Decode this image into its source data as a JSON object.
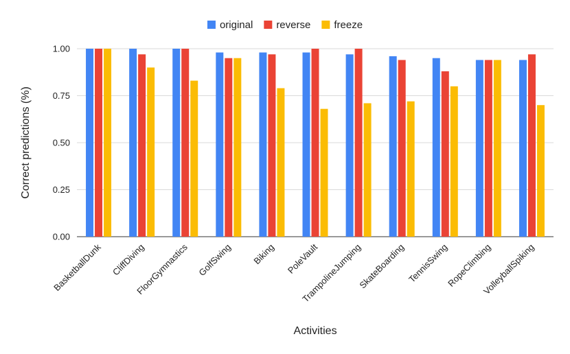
{
  "chart_data": {
    "type": "bar",
    "title": "",
    "xlabel": "Activities",
    "ylabel": "Correct predictions (%)",
    "ylim": [
      0,
      1
    ],
    "yticks": [
      "0.00",
      "0.25",
      "0.50",
      "0.75",
      "1.00"
    ],
    "grid": true,
    "legend_position": "top",
    "categories": [
      "BasketballDunk",
      "CliffDiving",
      "FloorGymnastics",
      "GolfSwing",
      "Biking",
      "PoleVault",
      "TrampolineJumping",
      "SkateBoarding",
      "TennisSwing",
      "RopeClimbing",
      "VolleyballSpiking"
    ],
    "series": [
      {
        "name": "original",
        "color": "#4285f4",
        "values": [
          1.0,
          1.0,
          1.0,
          0.98,
          0.98,
          0.98,
          0.97,
          0.96,
          0.95,
          0.94,
          0.94
        ]
      },
      {
        "name": "reverse",
        "color": "#ea4335",
        "values": [
          1.0,
          0.97,
          1.0,
          0.95,
          0.97,
          1.0,
          1.0,
          0.94,
          0.88,
          0.94,
          0.97
        ]
      },
      {
        "name": "freeze",
        "color": "#fbbc04",
        "values": [
          1.0,
          0.9,
          0.83,
          0.95,
          0.79,
          0.68,
          0.71,
          0.72,
          0.8,
          0.94,
          0.7
        ]
      }
    ]
  }
}
